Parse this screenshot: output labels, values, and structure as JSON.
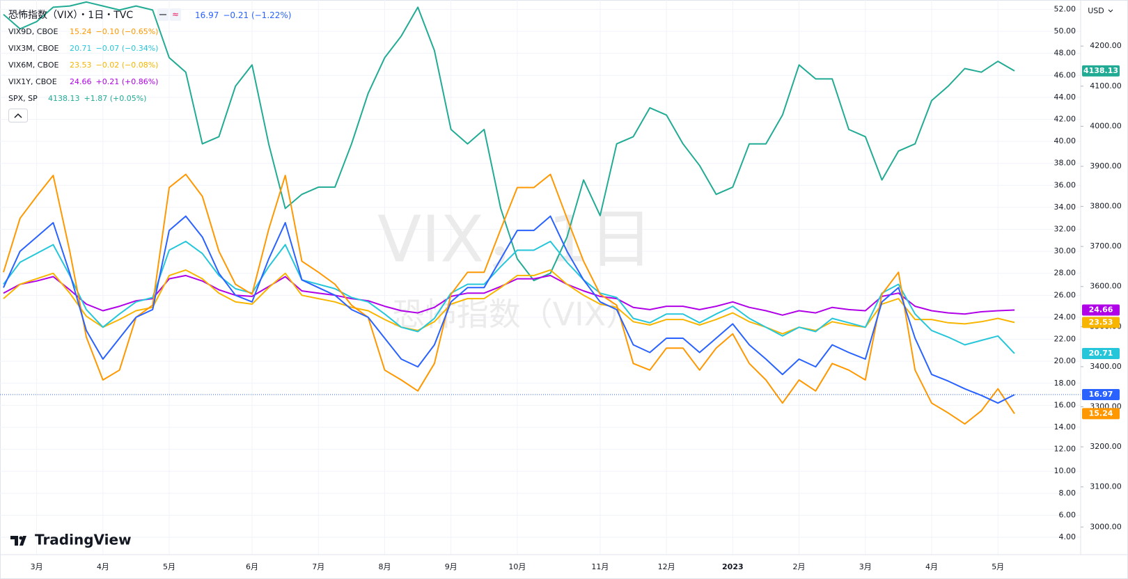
{
  "chart_data": {
    "type": "line",
    "title": "恐怖指数（VIX）・1日・TVC",
    "watermark": [
      "VIX，1日",
      "恐怖指数（VIX）"
    ],
    "brand": "TradingView",
    "currency": "USD",
    "grid": true,
    "categories": [
      null,
      null,
      "3月",
      null,
      null,
      null,
      "4月",
      null,
      null,
      null,
      "5月",
      null,
      null,
      null,
      null,
      "6月",
      null,
      null,
      null,
      "7月",
      null,
      null,
      null,
      "8月",
      null,
      null,
      null,
      "9月",
      null,
      null,
      null,
      "10月",
      null,
      null,
      null,
      null,
      "11月",
      null,
      null,
      null,
      "12月",
      null,
      null,
      null,
      "2023",
      null,
      null,
      null,
      "2月",
      null,
      null,
      null,
      "3月",
      null,
      null,
      null,
      "4月",
      null,
      null,
      null,
      "5月",
      null
    ],
    "ylim": [
      2.42,
      52.85
    ],
    "yticks": [
      {
        "value": 4,
        "label": "4.00"
      },
      {
        "value": 6,
        "label": "6.00"
      },
      {
        "value": 8,
        "label": "8.00"
      },
      {
        "value": 10,
        "label": "10.00"
      },
      {
        "value": 12,
        "label": "12.00"
      },
      {
        "value": 14,
        "label": "14.00"
      },
      {
        "value": 16,
        "label": "16.00"
      },
      {
        "value": 18,
        "label": "18.00"
      },
      {
        "value": 20,
        "label": "20.00"
      },
      {
        "value": 22,
        "label": "22.00"
      },
      {
        "value": 24,
        "label": "24.00"
      },
      {
        "value": 26,
        "label": "26.00"
      },
      {
        "value": 28,
        "label": "28.00"
      },
      {
        "value": 30,
        "label": "30.00"
      },
      {
        "value": 32,
        "label": "32.00"
      },
      {
        "value": 34,
        "label": "34.00"
      },
      {
        "value": 36,
        "label": "36.00"
      },
      {
        "value": 38,
        "label": "38.00"
      },
      {
        "value": 40,
        "label": "40.00"
      },
      {
        "value": 42,
        "label": "42.00"
      },
      {
        "value": 44,
        "label": "44.00"
      },
      {
        "value": 46,
        "label": "46.00"
      },
      {
        "value": 48,
        "label": "48.00"
      },
      {
        "value": 50,
        "label": "50.00"
      },
      {
        "value": 52,
        "label": "52.00"
      }
    ],
    "y2lim": [
      2931,
      4315
    ],
    "y2ticks": [
      {
        "value": 3000,
        "label": "3000.00"
      },
      {
        "value": 3100,
        "label": "3100.00"
      },
      {
        "value": 3200,
        "label": "3200.00"
      },
      {
        "value": 3300,
        "label": "3300.00"
      },
      {
        "value": 3400,
        "label": "3400.00"
      },
      {
        "value": 3500,
        "label": "3500.00"
      },
      {
        "value": 3600,
        "label": "3600.00"
      },
      {
        "value": 3700,
        "label": "3700.00"
      },
      {
        "value": 3800,
        "label": "3800.00"
      },
      {
        "value": 3900,
        "label": "3900.00"
      },
      {
        "value": 4000,
        "label": "4000.00"
      },
      {
        "value": 4100,
        "label": "4100.00"
      },
      {
        "value": 4200,
        "label": "4200.00"
      }
    ],
    "series": [
      {
        "name": "恐怖指数（VIX）",
        "color": "#2962ff",
        "change": "−0.21 (−1.22%)",
        "values": [
          26.7,
          30,
          31.3,
          32.6,
          28,
          22.8,
          20.2,
          22.1,
          24,
          24.7,
          31.9,
          33.2,
          31.3,
          28,
          26,
          25.4,
          29.3,
          32.6,
          27.4,
          26.7,
          26,
          24.7,
          24,
          22.1,
          20.2,
          19.5,
          21.5,
          25.4,
          26.7,
          26.7,
          29.3,
          31.9,
          31.9,
          33.2,
          30,
          27.4,
          25.4,
          24.7,
          21.5,
          20.8,
          22.1,
          22.1,
          20.8,
          22.1,
          23.4,
          21.5,
          20.2,
          18.8,
          20.2,
          19.5,
          21.5,
          20.8,
          20.2,
          25.4,
          26.7,
          22.1,
          18.8,
          18.2,
          17.5,
          16.9,
          16.2,
          16.97
        ]
      },
      {
        "name": "VIX9D, CBOE",
        "color": "#ff9800",
        "change": "−0.10 (−0.65%)",
        "values": [
          28.1,
          33,
          35,
          36.9,
          30,
          22.2,
          18.3,
          19.2,
          24,
          25.1,
          35.8,
          37,
          35,
          30,
          27,
          26.1,
          32,
          36.9,
          29.1,
          28.1,
          27,
          25.1,
          24,
          19.2,
          18.3,
          17.3,
          19.8,
          26.1,
          28.1,
          28.1,
          32,
          35.8,
          35.8,
          37,
          33,
          29.1,
          26.1,
          25.1,
          19.8,
          19.2,
          21.2,
          21.2,
          19.2,
          21.2,
          22.5,
          19.8,
          18.3,
          16.2,
          18.3,
          17.3,
          19.8,
          19.2,
          18.3,
          26.1,
          28.1,
          19.2,
          16.2,
          15.3,
          14.3,
          15.5,
          17.5,
          15.24
        ]
      },
      {
        "name": "VIX3M, CBOE",
        "color": "#26c6da",
        "change": "−0.07 (−0.34%)",
        "values": [
          27,
          29,
          29.8,
          30.6,
          27.8,
          24.7,
          23.1,
          24.3,
          25.4,
          25.8,
          30.1,
          30.9,
          29.8,
          27.8,
          26.6,
          26.2,
          28.6,
          30.6,
          27.4,
          27,
          26.6,
          25.8,
          25.4,
          24.3,
          23.1,
          22.7,
          23.9,
          26.2,
          27,
          27,
          28.6,
          30.1,
          30.1,
          30.9,
          29,
          27.4,
          26.2,
          25.8,
          23.9,
          23.5,
          24.3,
          24.3,
          23.5,
          24.3,
          25,
          23.9,
          23.1,
          22.3,
          23.1,
          22.7,
          23.9,
          23.5,
          23.1,
          26.2,
          27,
          24.3,
          22.8,
          22.2,
          21.5,
          21.9,
          22.3,
          20.71
        ]
      },
      {
        "name": "VIX6M, CBOE",
        "color": "#f7b500",
        "change": "−0.02 (−0.08%)",
        "values": [
          25.7,
          27,
          27.5,
          28,
          26.2,
          24.1,
          23.1,
          23.8,
          24.6,
          24.9,
          27.8,
          28.3,
          27.5,
          26.2,
          25.4,
          25.2,
          26.7,
          28,
          26,
          25.7,
          25.4,
          24.9,
          24.6,
          23.8,
          23.1,
          22.8,
          23.6,
          25.2,
          25.7,
          25.7,
          26.7,
          27.8,
          27.8,
          28.3,
          27,
          26,
          25.2,
          24.9,
          23.6,
          23.3,
          23.8,
          23.8,
          23.3,
          23.8,
          24.4,
          23.6,
          23.1,
          22.5,
          23.1,
          22.8,
          23.6,
          23.3,
          23.1,
          25.2,
          25.7,
          23.8,
          23.8,
          23.5,
          23.4,
          23.6,
          23.9,
          23.53
        ]
      },
      {
        "name": "VIX1Y, CBOE",
        "color": "#b000e8",
        "change": "+0.21 (+0.86%)",
        "values": [
          26.2,
          27,
          27.3,
          27.7,
          26.5,
          25.2,
          24.6,
          25,
          25.5,
          25.7,
          27.5,
          27.8,
          27.3,
          26.5,
          26,
          25.9,
          26.8,
          27.7,
          26.4,
          26.2,
          26,
          25.7,
          25.5,
          25,
          24.6,
          24.4,
          24.9,
          25.9,
          26.2,
          26.2,
          26.8,
          27.5,
          27.5,
          27.8,
          27,
          26.4,
          25.9,
          25.7,
          24.9,
          24.7,
          25,
          25,
          24.7,
          25,
          25.4,
          24.9,
          24.6,
          24.2,
          24.6,
          24.4,
          24.9,
          24.7,
          24.6,
          25.9,
          26.2,
          25,
          24.6,
          24.4,
          24.3,
          24.5,
          24.6,
          24.66
        ]
      },
      {
        "name": "SPX, SP",
        "color": "#22ab94",
        "change": "+1.87 (+0.05%)",
        "axis": "y2",
        "values": [
          4279,
          4243,
          4261,
          4297,
          4300,
          4310,
          4300,
          4290,
          4300,
          4290,
          4171,
          4135,
          3956,
          3974,
          4100,
          4153,
          3956,
          3795,
          3830,
          3848,
          3848,
          3956,
          4082,
          4171,
          4225,
          4297,
          4189,
          3992,
          3956,
          3992,
          3795,
          3669,
          3615,
          3633,
          3723,
          3866,
          3777,
          3956,
          3974,
          4046,
          4028,
          3956,
          3902,
          3830,
          3848,
          3956,
          3956,
          4028,
          4153,
          4118,
          4118,
          3992,
          3974,
          3866,
          3938,
          3956,
          4064,
          4100,
          4144,
          4135,
          4162,
          4138.13
        ]
      }
    ]
  }
}
